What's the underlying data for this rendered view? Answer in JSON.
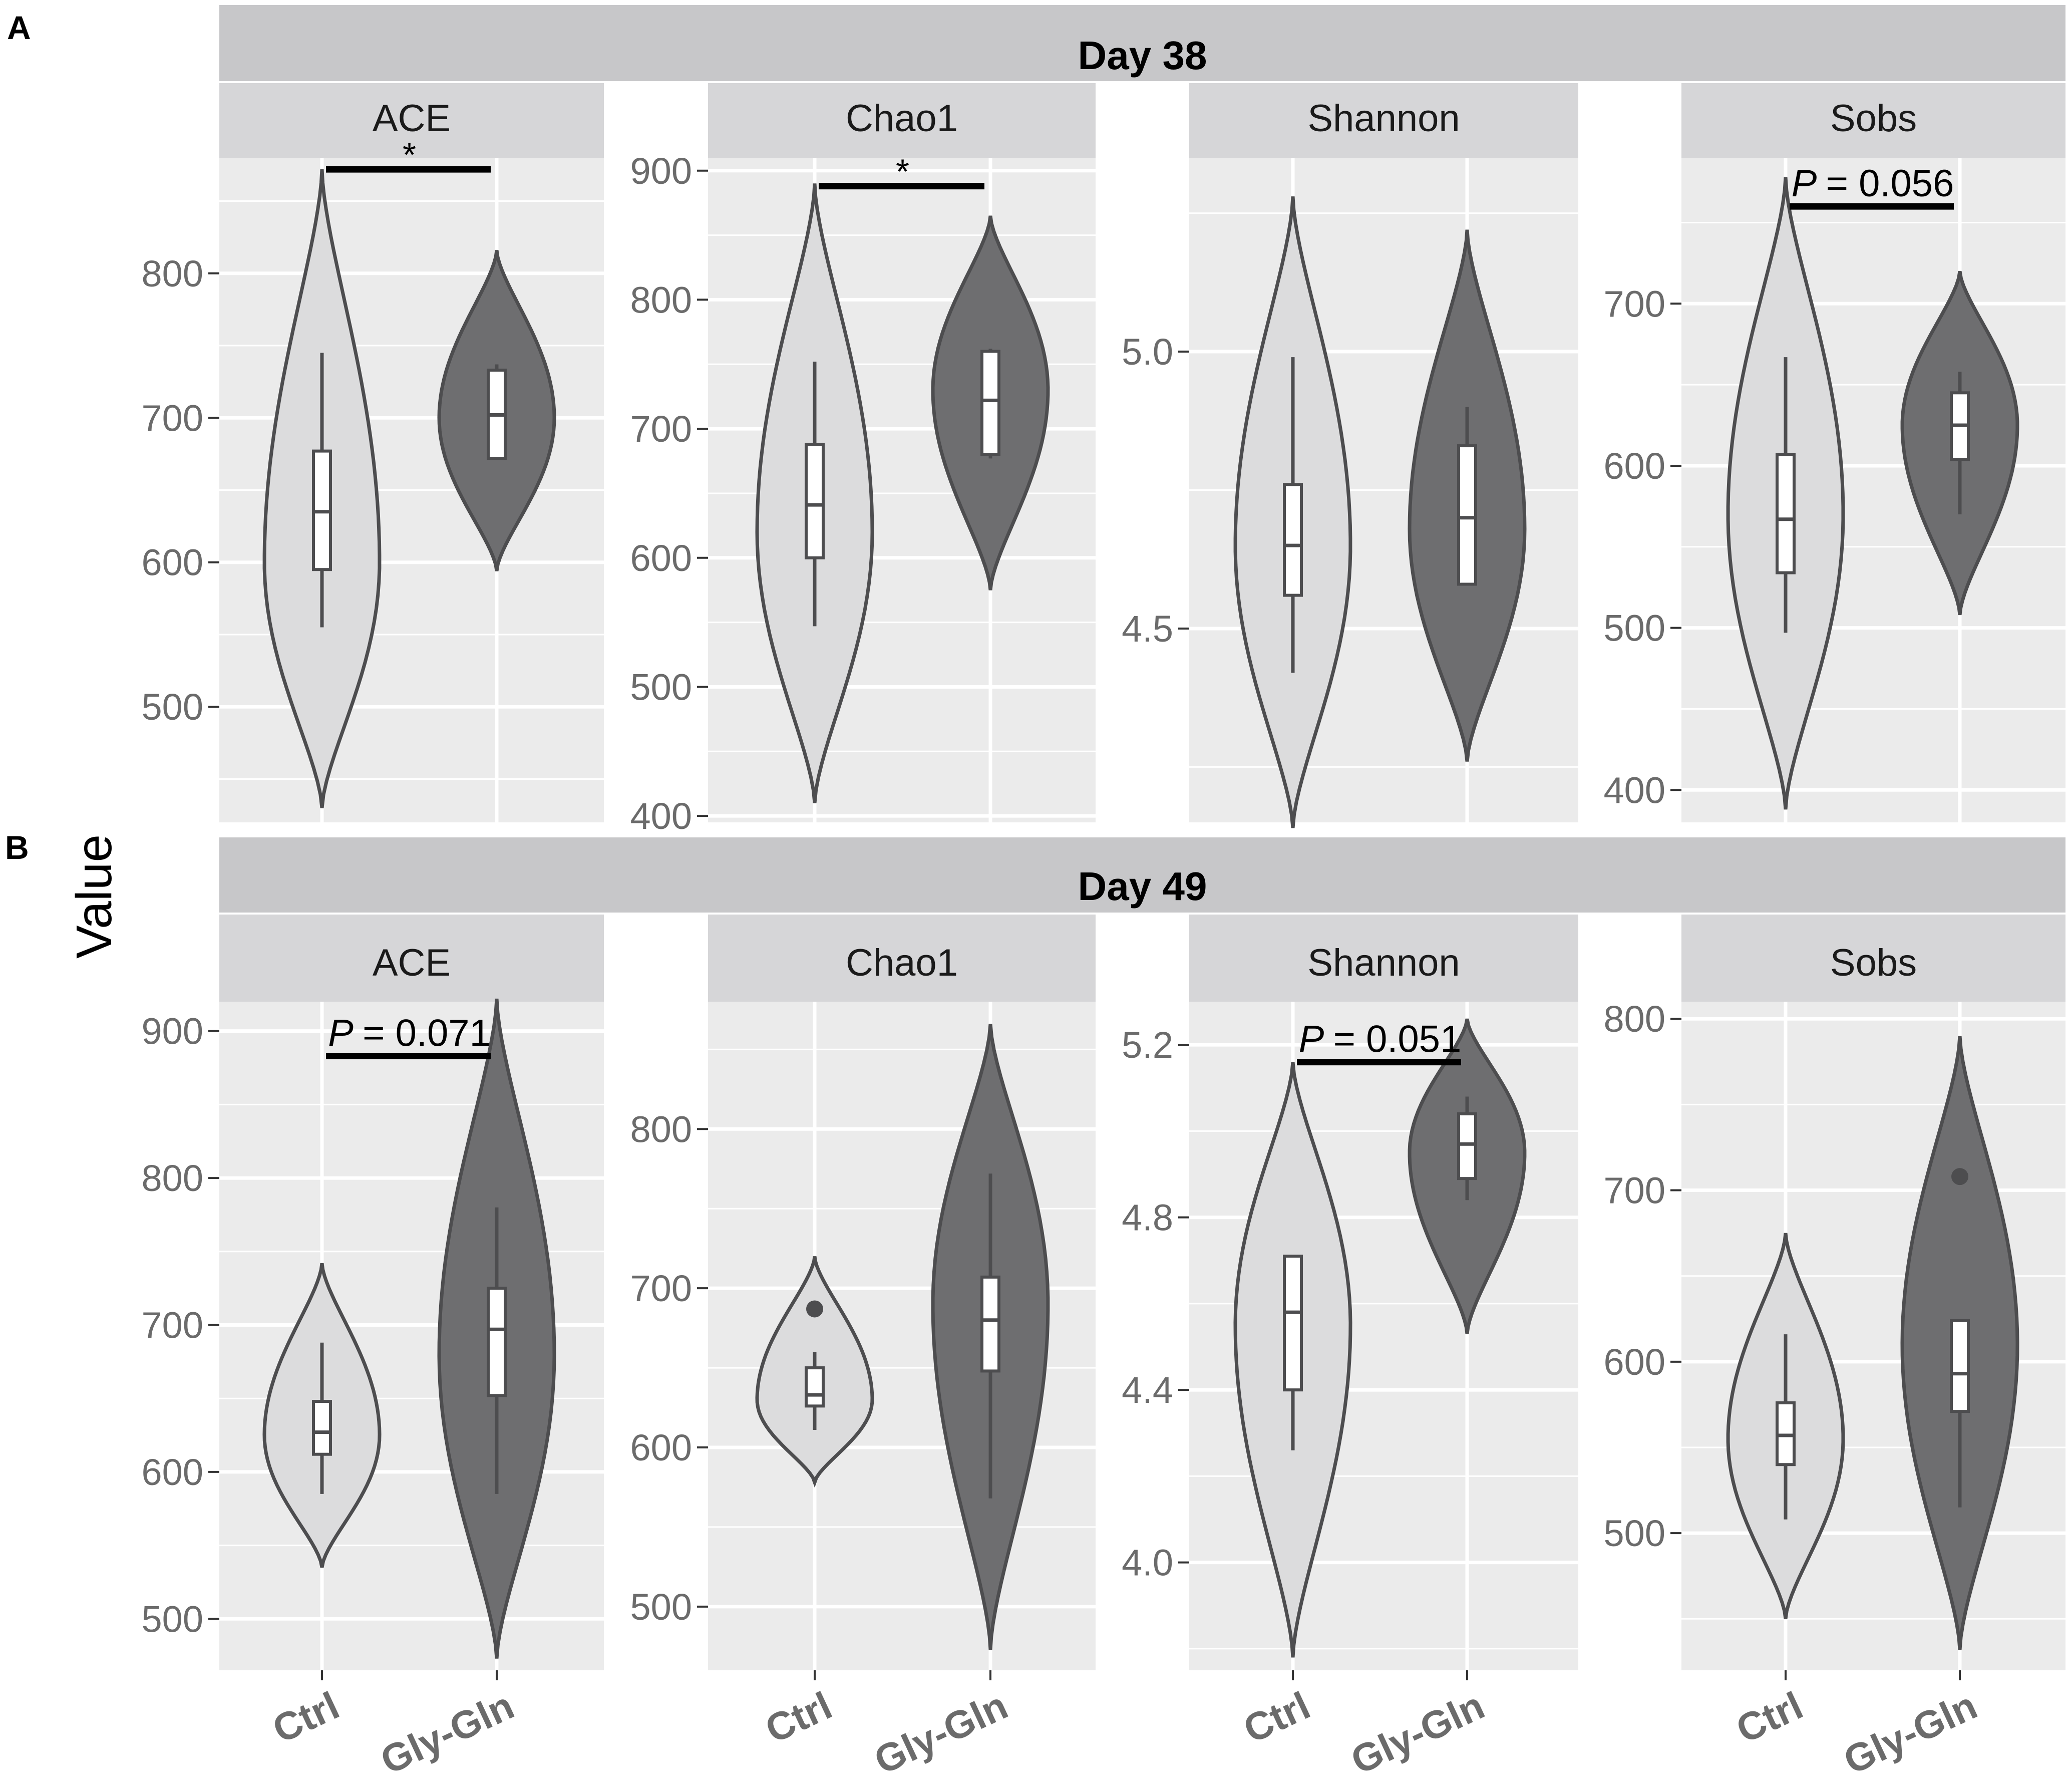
{
  "figure": {
    "ylabel": "Value",
    "group_labels": [
      "Ctrl",
      "Gly-Gln"
    ],
    "colors": {
      "ctrl_fill": "#dcdcdd",
      "glygln_fill": "#6e6e70",
      "outline": "#4d4d4f",
      "panel_bg": "#ebebeb",
      "strip_bg": "#d6d6d8",
      "day_strip_bg": "#c7c7c9",
      "tick_text": "#6b6b6b"
    }
  },
  "chart_data": [
    {
      "panel": "A",
      "title": "Day 38",
      "type": "violin",
      "facets": [
        {
          "name": "ACE",
          "ylim": [
            420,
            880
          ],
          "yticks": [
            500,
            600,
            700,
            800
          ],
          "significance": {
            "label": "*",
            "italic_p": false,
            "y": 872
          },
          "groups": [
            {
              "name": "Ctrl",
              "min": 430,
              "max": 872,
              "bulge_y": 600,
              "q1": 595,
              "median": 635,
              "q3": 677,
              "whisker_low": 555,
              "whisker_high": 745,
              "outlier": null
            },
            {
              "name": "Gly-Gln",
              "min": 594,
              "max": 816,
              "bulge_y": 700,
              "q1": 672,
              "median": 702,
              "q3": 733,
              "whisker_low": 672,
              "whisker_high": 737,
              "outlier": null
            }
          ]
        },
        {
          "name": "Chao1",
          "ylim": [
            395,
            910
          ],
          "yticks": [
            400,
            500,
            600,
            700,
            800,
            900
          ],
          "significance": {
            "label": "*",
            "italic_p": false,
            "y": 888
          },
          "groups": [
            {
              "name": "Ctrl",
              "min": 410,
              "max": 890,
              "bulge_y": 620,
              "q1": 600,
              "median": 641,
              "q3": 688,
              "whisker_low": 547,
              "whisker_high": 752,
              "outlier": null
            },
            {
              "name": "Gly-Gln",
              "min": 575,
              "max": 865,
              "bulge_y": 730,
              "q1": 680,
              "median": 722,
              "q3": 760,
              "whisker_low": 677,
              "whisker_high": 762,
              "outlier": null
            }
          ]
        },
        {
          "name": "Shannon",
          "ylim": [
            4.15,
            5.35
          ],
          "yticks": [
            4.5,
            5.0
          ],
          "significance": null,
          "groups": [
            {
              "name": "Ctrl",
              "min": 4.14,
              "max": 5.28,
              "bulge_y": 4.65,
              "q1": 4.56,
              "median": 4.65,
              "q3": 4.76,
              "whisker_low": 4.42,
              "whisker_high": 4.99,
              "outlier": null
            },
            {
              "name": "Gly-Gln",
              "min": 4.26,
              "max": 5.22,
              "bulge_y": 4.68,
              "q1": 4.58,
              "median": 4.7,
              "q3": 4.83,
              "whisker_low": 4.58,
              "whisker_high": 4.9,
              "outlier": null
            }
          ]
        },
        {
          "name": "Sobs",
          "ylim": [
            380,
            790
          ],
          "yticks": [
            400,
            500,
            600,
            700
          ],
          "significance": {
            "label": "= 0.056",
            "italic_p": true,
            "y": 760
          },
          "groups": [
            {
              "name": "Ctrl",
              "min": 388,
              "max": 778,
              "bulge_y": 570,
              "q1": 534,
              "median": 567,
              "q3": 607,
              "whisker_low": 497,
              "whisker_high": 667,
              "outlier": null
            },
            {
              "name": "Gly-Gln",
              "min": 508,
              "max": 720,
              "bulge_y": 625,
              "q1": 604,
              "median": 625,
              "q3": 645,
              "whisker_low": 570,
              "whisker_high": 658,
              "outlier": null
            }
          ]
        }
      ]
    },
    {
      "panel": "B",
      "title": "Day 49",
      "type": "violin",
      "facets": [
        {
          "name": "ACE",
          "ylim": [
            465,
            920
          ],
          "yticks": [
            500,
            600,
            700,
            800,
            900
          ],
          "significance": {
            "label": "= 0.071",
            "italic_p": true,
            "y": 883
          },
          "groups": [
            {
              "name": "Ctrl",
              "min": 535,
              "max": 742,
              "bulge_y": 625,
              "q1": 612,
              "median": 627,
              "q3": 648,
              "whisker_low": 585,
              "whisker_high": 688,
              "outlier": null
            },
            {
              "name": "Gly-Gln",
              "min": 473,
              "max": 922,
              "bulge_y": 680,
              "q1": 652,
              "median": 697,
              "q3": 725,
              "whisker_low": 585,
              "whisker_high": 780,
              "outlier": null
            }
          ]
        },
        {
          "name": "Chao1",
          "ylim": [
            460,
            880
          ],
          "yticks": [
            500,
            600,
            700,
            800
          ],
          "significance": null,
          "groups": [
            {
              "name": "Ctrl",
              "min": 578,
              "max": 720,
              "bulge_y": 630,
              "q1": 626,
              "median": 633,
              "q3": 650,
              "whisker_low": 611,
              "whisker_high": 660,
              "outlier": 687
            },
            {
              "name": "Gly-Gln",
              "min": 473,
              "max": 866,
              "bulge_y": 690,
              "q1": 648,
              "median": 680,
              "q3": 707,
              "whisker_low": 568,
              "whisker_high": 772,
              "outlier": null
            }
          ]
        },
        {
          "name": "Shannon",
          "ylim": [
            3.75,
            5.3
          ],
          "yticks": [
            4.0,
            4.4,
            4.8,
            5.2
          ],
          "significance": {
            "label": "= 0.051",
            "italic_p": true,
            "y": 5.16
          },
          "groups": [
            {
              "name": "Ctrl",
              "min": 3.78,
              "max": 5.16,
              "bulge_y": 4.55,
              "q1": 4.4,
              "median": 4.58,
              "q3": 4.71,
              "whisker_low": 4.26,
              "whisker_high": 4.71,
              "outlier": null
            },
            {
              "name": "Gly-Gln",
              "min": 4.53,
              "max": 5.26,
              "bulge_y": 4.95,
              "q1": 4.89,
              "median": 4.97,
              "q3": 5.04,
              "whisker_low": 4.84,
              "whisker_high": 5.08,
              "outlier": null
            }
          ]
        },
        {
          "name": "Sobs",
          "ylim": [
            420,
            810
          ],
          "yticks": [
            500,
            600,
            700,
            800
          ],
          "significance": null,
          "groups": [
            {
              "name": "Ctrl",
              "min": 450,
              "max": 675,
              "bulge_y": 555,
              "q1": 540,
              "median": 557,
              "q3": 576,
              "whisker_low": 508,
              "whisker_high": 616,
              "outlier": null
            },
            {
              "name": "Gly-Gln",
              "min": 432,
              "max": 790,
              "bulge_y": 610,
              "q1": 571,
              "median": 593,
              "q3": 624,
              "whisker_low": 515,
              "whisker_high": 624,
              "outlier": 708
            }
          ]
        }
      ]
    }
  ]
}
